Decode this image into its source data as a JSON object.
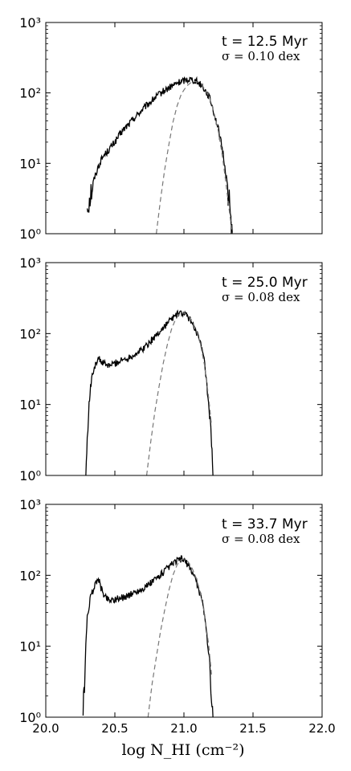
{
  "chart_data": [
    {
      "type": "line",
      "annotation": {
        "time": "t = 12.5 Myr",
        "sigma": "σ = 0.10 dex"
      },
      "xlim": [
        20.0,
        22.0
      ],
      "ylim": [
        1,
        1000
      ],
      "yscale": "log",
      "yticks": [
        "10⁰",
        "10¹",
        "10²",
        "10³"
      ],
      "series": [
        {
          "style": "solid",
          "color": "#000000",
          "x": [
            20.3,
            20.32,
            20.35,
            20.38,
            20.4,
            20.42,
            20.45,
            20.5,
            20.55,
            20.6,
            20.65,
            20.7,
            20.75,
            20.8,
            20.85,
            20.9,
            20.95,
            21.0,
            21.02,
            21.05,
            21.08,
            21.1,
            21.13,
            21.15,
            21.18,
            21.2,
            21.22,
            21.25,
            21.28,
            21.3,
            21.32,
            21.34,
            21.35
          ],
          "y": [
            2.5,
            3.5,
            6,
            9,
            11,
            13,
            15,
            20,
            28,
            36,
            46,
            58,
            72,
            88,
            105,
            120,
            138,
            150,
            155,
            157,
            150,
            143,
            128,
            112,
            90,
            70,
            50,
            30,
            15,
            8,
            4,
            1.5,
            1
          ]
        },
        {
          "style": "dashed",
          "color": "#777777",
          "x": [
            20.8,
            20.83,
            20.86,
            20.89,
            20.92,
            20.95,
            20.98,
            21.0,
            21.02,
            21.05,
            21.08,
            21.1,
            21.13,
            21.15,
            21.18,
            21.2,
            21.22,
            21.25,
            21.28,
            21.3,
            21.33,
            21.35
          ],
          "y": [
            1,
            3,
            8,
            18,
            38,
            65,
            95,
            110,
            125,
            140,
            145,
            143,
            130,
            112,
            90,
            70,
            50,
            28,
            12,
            6,
            2,
            1
          ]
        }
      ]
    },
    {
      "type": "line",
      "annotation": {
        "time": "t = 25.0 Myr",
        "sigma": "σ = 0.08 dex"
      },
      "xlim": [
        20.0,
        22.0
      ],
      "ylim": [
        1,
        1000
      ],
      "yscale": "log",
      "yticks": [
        "10⁰",
        "10¹",
        "10²",
        "10³"
      ],
      "series": [
        {
          "style": "solid",
          "color": "#000000",
          "x": [
            20.29,
            20.3,
            20.31,
            20.32,
            20.34,
            20.36,
            20.38,
            20.4,
            20.45,
            20.5,
            20.55,
            20.6,
            20.65,
            20.7,
            20.75,
            20.8,
            20.85,
            20.9,
            20.95,
            20.98,
            21.0,
            21.03,
            21.05,
            21.08,
            21.1,
            21.13,
            21.15,
            21.17,
            21.19,
            21.2,
            21.21
          ],
          "y": [
            1,
            3,
            8,
            15,
            28,
            38,
            45,
            40,
            35,
            38,
            42,
            46,
            52,
            60,
            75,
            95,
            120,
            155,
            185,
            195,
            190,
            170,
            150,
            120,
            95,
            60,
            38,
            15,
            5,
            2,
            1
          ]
        },
        {
          "style": "dashed",
          "color": "#777777",
          "x": [
            20.73,
            20.76,
            20.79,
            20.82,
            20.85,
            20.88,
            20.91,
            20.94,
            20.97,
            21.0,
            21.03,
            21.06,
            21.09,
            21.12,
            21.15,
            21.18,
            21.2
          ],
          "y": [
            1,
            3,
            8,
            18,
            38,
            70,
            115,
            160,
            190,
            195,
            180,
            150,
            110,
            70,
            35,
            12,
            5
          ]
        }
      ]
    },
    {
      "type": "line",
      "annotation": {
        "time": "t = 33.7 Myr",
        "sigma": "σ = 0.08 dex"
      },
      "xlim": [
        20.0,
        22.0
      ],
      "ylim": [
        1,
        1000
      ],
      "yscale": "log",
      "yticks": [
        "10⁰",
        "10¹",
        "10²",
        "10³"
      ],
      "xticks": [
        "20.0",
        "20.5",
        "21.0",
        "21.5",
        "22.0"
      ],
      "xlabel": "log N_HI (cm⁻²)",
      "series": [
        {
          "style": "solid",
          "color": "#000000",
          "x": [
            20.27,
            20.28,
            20.29,
            20.3,
            20.32,
            20.34,
            20.36,
            20.38,
            20.4,
            20.43,
            20.46,
            20.5,
            20.55,
            20.6,
            20.65,
            20.7,
            20.75,
            20.8,
            20.85,
            20.9,
            20.95,
            20.98,
            21.0,
            21.03,
            21.05,
            21.08,
            21.1,
            21.13,
            21.15,
            21.17,
            21.19,
            21.2,
            21.21
          ],
          "y": [
            1,
            3,
            10,
            25,
            45,
            60,
            75,
            95,
            65,
            50,
            45,
            46,
            48,
            52,
            58,
            64,
            75,
            90,
            110,
            135,
            160,
            170,
            165,
            140,
            120,
            95,
            70,
            45,
            28,
            12,
            5,
            2,
            1
          ]
        },
        {
          "style": "dashed",
          "color": "#777777",
          "x": [
            20.74,
            20.77,
            20.8,
            20.83,
            20.86,
            20.89,
            20.92,
            20.95,
            20.98,
            21.0,
            21.03,
            21.06,
            21.09,
            21.12,
            21.15,
            21.18,
            21.2
          ],
          "y": [
            1,
            3,
            7,
            16,
            32,
            60,
            100,
            140,
            165,
            170,
            155,
            125,
            90,
            55,
            28,
            10,
            4
          ]
        }
      ]
    }
  ]
}
